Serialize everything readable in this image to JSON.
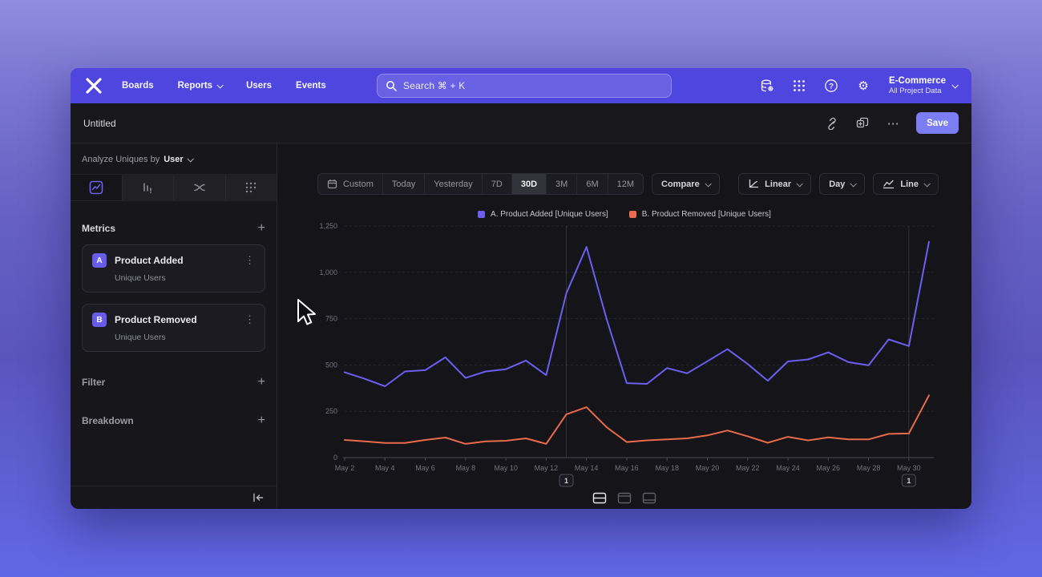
{
  "nav": {
    "items": [
      "Boards",
      "Reports",
      "Users",
      "Events"
    ],
    "search_placeholder": "Search  ⌘ + K",
    "project_name": "E-Commerce",
    "project_sub": "All Project Data"
  },
  "header": {
    "title": "Untitled",
    "more_label": "⋯",
    "save_label": "Save"
  },
  "sidebar": {
    "analyze_prefix": "Analyze Uniques by",
    "analyze_value": "User",
    "metrics_label": "Metrics",
    "plus": "+",
    "metrics": [
      {
        "badge": "A",
        "name": "Product Added",
        "sub": "Unique Users",
        "menu": "⋮"
      },
      {
        "badge": "B",
        "name": "Product Removed",
        "sub": "Unique Users",
        "menu": "⋮"
      }
    ],
    "filter_label": "Filter",
    "breakdown_label": "Breakdown"
  },
  "toolbar": {
    "ranges": [
      "Custom",
      "Today",
      "Yesterday",
      "7D",
      "30D",
      "3M",
      "6M",
      "12M"
    ],
    "selected_range": "30D",
    "compare_label": "Compare",
    "scale_label": "Linear",
    "interval_label": "Day",
    "chart_type_label": "Line"
  },
  "legend": [
    {
      "label": "A. Product Added [Unique Users]",
      "color": "#6e5ef0"
    },
    {
      "label": "B. Product Removed [Unique Users]",
      "color": "#e96a4c"
    }
  ],
  "chart_data": {
    "type": "line",
    "title": "",
    "xlabel": "",
    "ylabel": "",
    "x": [
      "May 2",
      "May 3",
      "May 4",
      "May 5",
      "May 6",
      "May 7",
      "May 8",
      "May 9",
      "May 10",
      "May 11",
      "May 12",
      "May 13",
      "May 14",
      "May 15",
      "May 16",
      "May 17",
      "May 18",
      "May 19",
      "May 20",
      "May 21",
      "May 22",
      "May 23",
      "May 24",
      "May 25",
      "May 26",
      "May 27",
      "May 28",
      "May 29",
      "May 30",
      "May 31"
    ],
    "x_tick_every": 2,
    "series": [
      {
        "name": "A. Product Added [Unique Users]",
        "color": "#6e5ef0",
        "values": [
          460,
          425,
          385,
          465,
          472,
          541,
          430,
          465,
          477,
          524,
          445,
          886,
          1137,
          748,
          402,
          398,
          483,
          455,
          520,
          585,
          505,
          415,
          519,
          530,
          568,
          515,
          498,
          638,
          602,
          1165
        ]
      },
      {
        "name": "B. Product Removed [Unique Users]",
        "color": "#e96a4c",
        "values": [
          95,
          88,
          79,
          79,
          95,
          108,
          74,
          88,
          91,
          104,
          74,
          233,
          272,
          164,
          84,
          93,
          98,
          104,
          120,
          146,
          115,
          80,
          112,
          93,
          109,
          98,
          98,
          128,
          130,
          336
        ]
      }
    ],
    "ylim": [
      0,
      1250
    ],
    "yticks": [
      0,
      250,
      500,
      750,
      1000,
      1250
    ],
    "ytick_labels": [
      "0",
      "250",
      "500",
      "750",
      "1,000",
      "1,250"
    ],
    "grid": "horizontal-dashed",
    "legend_position": "top-center",
    "annotations": [
      {
        "label": "1",
        "x_index": 11
      },
      {
        "label": "1",
        "x_index": 28
      }
    ]
  }
}
